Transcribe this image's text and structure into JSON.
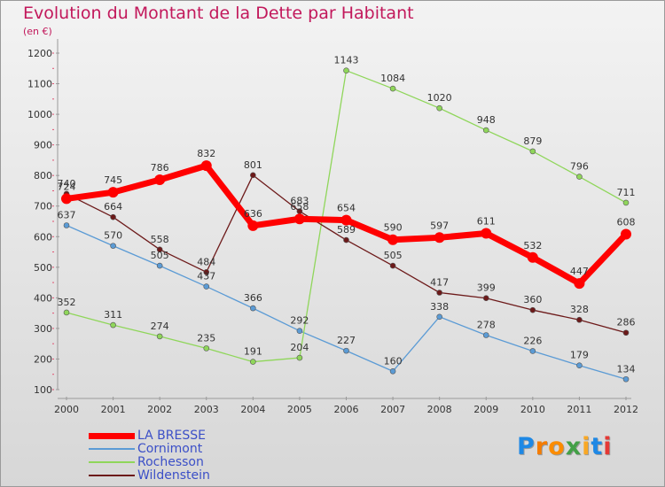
{
  "header": {
    "title": "Evolution du Montant de la Dette par Habitant",
    "subtitle": "(en €)"
  },
  "logo": {
    "letters": [
      "P",
      "r",
      "o",
      "x",
      "i",
      "t",
      "i"
    ],
    "colors": [
      "#1e88e5",
      "#f57c00",
      "#fb8c00",
      "#43a047",
      "#f9a825",
      "#1e88e5",
      "#e53935"
    ]
  },
  "chart_data": {
    "type": "line",
    "title": "Evolution du Montant de la Dette par Habitant",
    "subtitle": "(en €)",
    "x": [
      2000,
      2001,
      2002,
      2003,
      2004,
      2005,
      2006,
      2007,
      2008,
      2009,
      2010,
      2011,
      2012
    ],
    "ylim": [
      100,
      1200
    ],
    "yticks": [
      100,
      200,
      300,
      400,
      500,
      600,
      700,
      800,
      900,
      1000,
      1100,
      1200
    ],
    "legend_position": "bottom-left",
    "grid": false,
    "series": [
      {
        "name": "LA BRESSE",
        "color": "#ff0000",
        "values": [
          724,
          745,
          786,
          832,
          636,
          658,
          654,
          590,
          597,
          611,
          532,
          447,
          608
        ]
      },
      {
        "name": "Cornimont",
        "color": "#5b9bd5",
        "values": [
          637,
          570,
          505,
          437,
          366,
          292,
          227,
          160,
          338,
          278,
          226,
          179,
          134
        ]
      },
      {
        "name": "Rochesson",
        "color": "#8fd65a",
        "values": [
          352,
          311,
          274,
          235,
          191,
          204,
          1143,
          1084,
          1020,
          948,
          879,
          796,
          711
        ]
      },
      {
        "name": "Wildenstein",
        "color": "#6d1a1a",
        "values": [
          740,
          664,
          558,
          484,
          801,
          683,
          589,
          505,
          417,
          399,
          360,
          328,
          286
        ]
      }
    ]
  }
}
